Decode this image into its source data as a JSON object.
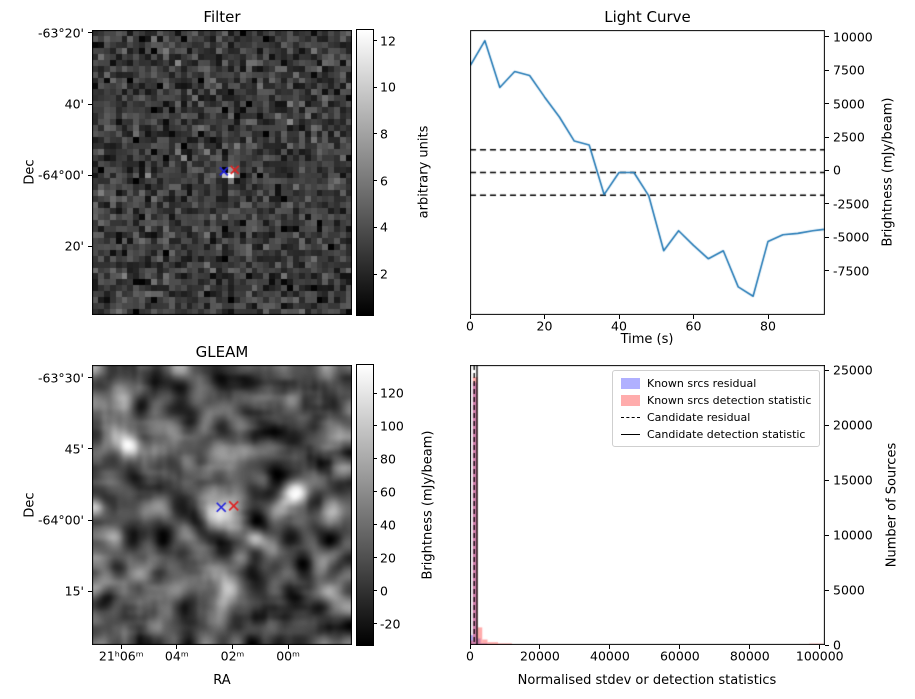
{
  "figure": {
    "background": "#ffffff"
  },
  "chart_data": [
    {
      "id": "filter",
      "type": "heatmap",
      "title": "Filter",
      "xlabel": "",
      "ylabel": "Dec",
      "grid": false,
      "ytick_labels": [
        "-63°20'",
        "40'",
        "-64°00'",
        "20'"
      ],
      "ytick_values": [
        -63.3333,
        -63.6667,
        -64.0,
        -64.3333
      ],
      "y_top": -63.32,
      "y_bottom": -64.655,
      "colorbar": {
        "label": "arbitrary units",
        "cmap": "gray",
        "vmin": 0.25,
        "vmax": 12.45,
        "ticks": [
          2,
          4,
          6,
          8,
          10,
          12
        ]
      },
      "noise": {
        "seed": 20,
        "cols": 44,
        "rows": 48,
        "mean": 3.1,
        "sd": 1.15
      },
      "source": {
        "col_frac": 0.513,
        "row_frac": 0.497
      },
      "markers": [
        {
          "shape": "x",
          "color": "#2222dd",
          "rx": 0.507,
          "ry": 0.496
        },
        {
          "shape": "x",
          "color": "#dd2222",
          "rx": 0.549,
          "ry": 0.491
        }
      ],
      "description": "Pixelated grayscale noise image with one bright compact source at the centre marked by blue and red crosses"
    },
    {
      "id": "light_curve",
      "type": "line",
      "title": "Light Curve",
      "xlabel": "Time (s)",
      "ylabel": "Brightness (mJy/beam)",
      "ylabel_side": "right",
      "grid": false,
      "xlim": [
        0,
        95.3
      ],
      "ylim": [
        -10800,
        10500
      ],
      "xticks": [
        0,
        20,
        40,
        60,
        80
      ],
      "yticks": [
        10000,
        7500,
        5000,
        2500,
        0,
        -2500,
        -5000,
        -7500
      ],
      "line_color": "#1f77b4",
      "x": [
        0,
        4,
        8,
        12,
        16,
        20,
        24,
        28,
        32,
        36,
        40,
        44,
        48,
        52,
        56,
        60,
        64,
        68,
        72,
        76,
        80,
        84,
        88,
        92,
        95
      ],
      "y": [
        7800,
        9700,
        6200,
        7400,
        7100,
        5500,
        4000,
        2200,
        1900,
        -1800,
        -150,
        -150,
        -1900,
        -6000,
        -4500,
        -5600,
        -6600,
        -6000,
        -8700,
        -9400,
        -5300,
        -4800,
        -4700,
        -4500,
        -4400
      ],
      "dashed_hlines": [
        1550,
        -150,
        -1850
      ]
    },
    {
      "id": "gleam",
      "type": "heatmap",
      "title": "GLEAM",
      "xlabel": "RA",
      "ylabel": "Dec",
      "grid": false,
      "xtick_labels": [
        "21ʰ06ᵐ",
        "04ᵐ",
        "02ᵐ",
        "00ᵐ"
      ],
      "xtick_values": [
        21.1,
        21.0667,
        21.0333,
        21.0
      ],
      "x_left": 21.1175,
      "x_right": 20.9617,
      "ytick_labels": [
        "-63°30'",
        "45'",
        "-64°00'",
        "15'"
      ],
      "ytick_values": [
        -63.5,
        -63.75,
        -64.0,
        -64.25
      ],
      "y_top": -63.455,
      "y_bottom": -64.439,
      "colorbar": {
        "label": "Brightness (mJy/beam)",
        "cmap": "gray",
        "vmin": -33,
        "vmax": 137,
        "ticks": [
          -20,
          0,
          20,
          40,
          60,
          80,
          100,
          120
        ]
      },
      "noise": {
        "seed": 7,
        "cols": 52,
        "rows": 56,
        "mean": 25,
        "sd": 45,
        "smooth_passes": 2,
        "gain": 2.1
      },
      "sources": [
        {
          "rx": 0.5,
          "ry": 0.515,
          "sigma": 2.4,
          "amp": 115
        },
        {
          "rx": 0.135,
          "ry": 0.27,
          "sigma": 1.7,
          "amp": 100
        },
        {
          "rx": 0.765,
          "ry": 0.45,
          "sigma": 1.7,
          "amp": 105
        },
        {
          "rx": 0.625,
          "ry": 0.615,
          "sigma": 1.5,
          "amp": 80
        },
        {
          "rx": 0.33,
          "ry": 0.75,
          "sigma": 1.5,
          "amp": 55
        },
        {
          "rx": 0.5,
          "ry": 0.845,
          "sigma": 1.4,
          "amp": 50
        },
        {
          "rx": 0.085,
          "ry": 0.6,
          "sigma": 1.3,
          "amp": 45
        },
        {
          "rx": 0.9,
          "ry": 0.8,
          "sigma": 1.3,
          "amp": 45
        }
      ],
      "markers": [
        {
          "shape": "x",
          "color": "#2222dd",
          "rx": 0.497,
          "ry": 0.508
        },
        {
          "shape": "x",
          "color": "#dd2222",
          "rx": 0.545,
          "ry": 0.503
        }
      ],
      "description": "Smoothed grayscale GLEAM sky image with several bright sources; the central source is marked by blue and red crosses"
    },
    {
      "id": "histogram",
      "type": "bar",
      "title": "",
      "xlabel": "Normalised stdev or detection statistics",
      "ylabel": "Number of Sources",
      "ylabel_side": "right",
      "grid": false,
      "xlim": [
        0,
        101500
      ],
      "ylim": [
        0,
        25500
      ],
      "xticks": [
        0,
        20000,
        40000,
        60000,
        80000,
        100000
      ],
      "yticks": [
        0,
        5000,
        10000,
        15000,
        20000,
        25000
      ],
      "series": [
        {
          "name": "Known srcs residual",
          "color": "rgba(80,80,255,0.45)",
          "bins": [
            [
              0,
              800,
              900
            ],
            [
              800,
              2000,
              23900
            ],
            [
              2000,
              3000,
              600
            ],
            [
              3000,
              5000,
              150
            ]
          ]
        },
        {
          "name": "Known srcs detection statistic",
          "color": "rgba(255,70,70,0.45)",
          "bins": [
            [
              0,
              800,
              400
            ],
            [
              800,
              2200,
              24400
            ],
            [
              2200,
              3500,
              1600
            ],
            [
              3500,
              5000,
              500
            ],
            [
              5000,
              8000,
              260
            ],
            [
              8000,
              12000,
              150
            ],
            [
              12000,
              20000,
              90
            ],
            [
              20000,
              30000,
              60
            ],
            [
              30000,
              45000,
              50
            ],
            [
              45000,
              60000,
              45
            ],
            [
              60000,
              80000,
              40
            ],
            [
              80000,
              97000,
              35
            ],
            [
              97000,
              101000,
              130
            ]
          ]
        }
      ],
      "vlines": [
        {
          "name": "Candidate residual",
          "style": "dashed",
          "x": 1200
        },
        {
          "name": "Candidate detection statistic",
          "style": "solid",
          "x": 2000
        }
      ],
      "legend": [
        "Known srcs residual",
        "Known srcs detection statistic",
        "Candidate residual",
        "Candidate detection statistic"
      ],
      "legend_position": "upper right"
    }
  ]
}
